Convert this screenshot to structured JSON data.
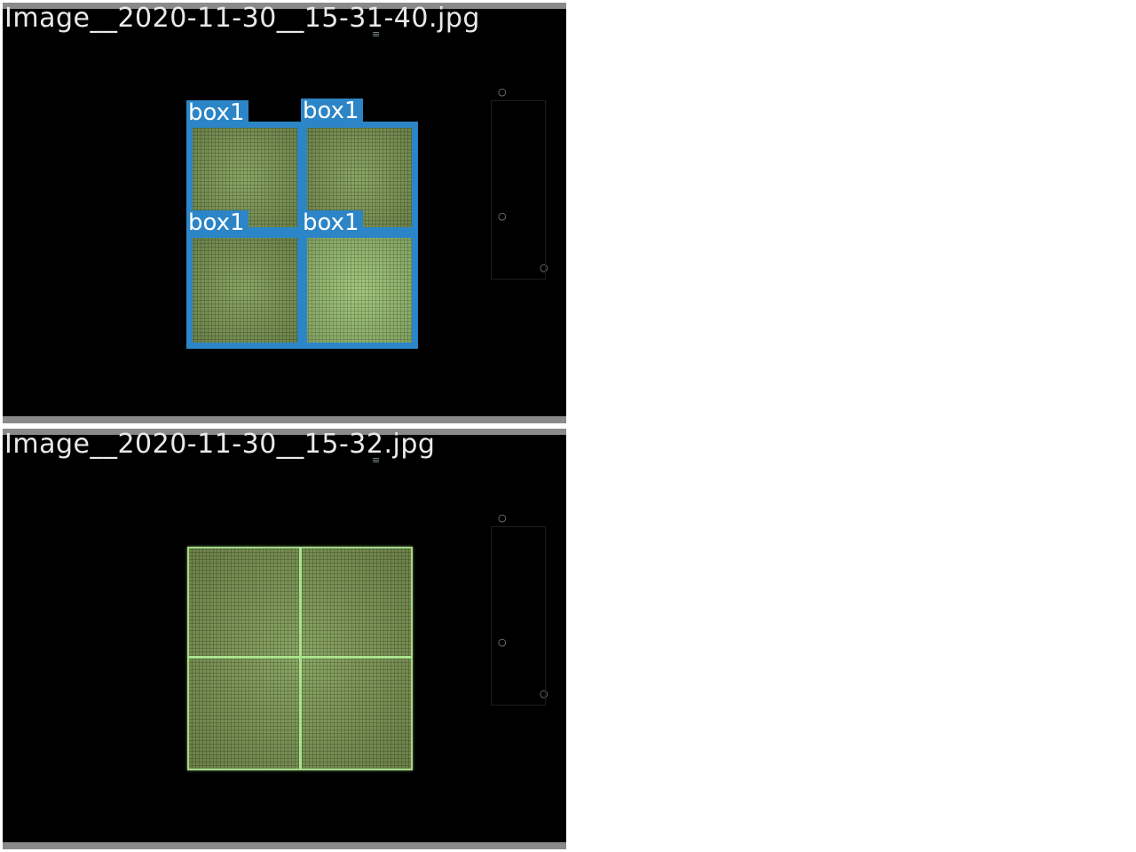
{
  "colors": {
    "detection": "#2c85c6",
    "label_text": "#ffffff",
    "background": "#000000",
    "sample_green": "#7f9f5e"
  },
  "images": [
    {
      "filename": "Image__2020-11-30__15-31-40.jpg",
      "detections": [
        {
          "label": "box1"
        },
        {
          "label": "box1"
        },
        {
          "label": "box1"
        },
        {
          "label": "box1"
        }
      ]
    },
    {
      "filename": "Image__2020-11-30__15-32.jpg",
      "detections": []
    }
  ]
}
